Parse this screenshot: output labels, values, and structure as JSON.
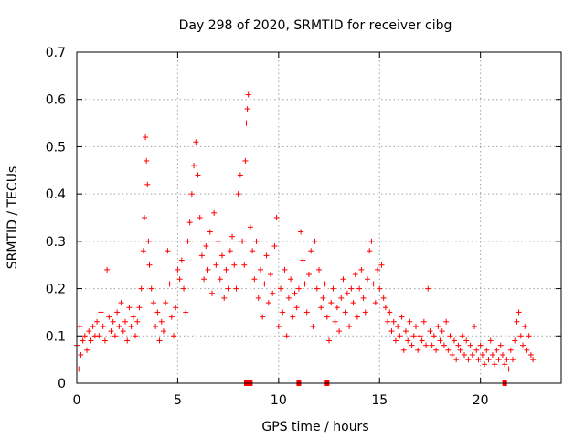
{
  "chart_data": {
    "type": "scatter",
    "title": "Day 298 of 2020, SRMTID for receiver cibg",
    "xlabel": "GPS time / hours",
    "ylabel": "SRMTID / TECUs",
    "xlim": [
      0,
      24
    ],
    "ylim": [
      0,
      0.7
    ],
    "x_ticks": [
      0,
      5,
      10,
      15,
      20
    ],
    "y_ticks": [
      0,
      0.1,
      0.2,
      0.3,
      0.4,
      0.5,
      0.6,
      0.7
    ],
    "x_tick_labels": [
      "0",
      "5",
      "10",
      "15",
      "20"
    ],
    "y_tick_labels": [
      "0",
      "0.1",
      "0.2",
      "0.3",
      "0.4",
      "0.5",
      "0.6",
      "0.7"
    ],
    "grid": true,
    "marker": "+",
    "color": "#ff0000",
    "data_gap_markers_x": [
      8.4,
      8.6,
      11.0,
      12.4,
      21.2
    ],
    "series": [
      {
        "name": "SRMTID",
        "points": [
          [
            0.0,
            0.08
          ],
          [
            0.1,
            0.03
          ],
          [
            0.15,
            0.12
          ],
          [
            0.2,
            0.06
          ],
          [
            0.3,
            0.09
          ],
          [
            0.4,
            0.1
          ],
          [
            0.5,
            0.07
          ],
          [
            0.6,
            0.11
          ],
          [
            0.7,
            0.09
          ],
          [
            0.8,
            0.12
          ],
          [
            0.9,
            0.1
          ],
          [
            1.0,
            0.13
          ],
          [
            1.1,
            0.1
          ],
          [
            1.2,
            0.15
          ],
          [
            1.3,
            0.12
          ],
          [
            1.4,
            0.09
          ],
          [
            1.5,
            0.24
          ],
          [
            1.6,
            0.14
          ],
          [
            1.7,
            0.11
          ],
          [
            1.8,
            0.13
          ],
          [
            1.9,
            0.1
          ],
          [
            2.0,
            0.15
          ],
          [
            2.1,
            0.12
          ],
          [
            2.2,
            0.17
          ],
          [
            2.3,
            0.11
          ],
          [
            2.4,
            0.13
          ],
          [
            2.5,
            0.09
          ],
          [
            2.6,
            0.16
          ],
          [
            2.7,
            0.12
          ],
          [
            2.8,
            0.14
          ],
          [
            2.9,
            0.1
          ],
          [
            3.0,
            0.13
          ],
          [
            3.1,
            0.16
          ],
          [
            3.2,
            0.2
          ],
          [
            3.3,
            0.28
          ],
          [
            3.35,
            0.35
          ],
          [
            3.4,
            0.52
          ],
          [
            3.45,
            0.47
          ],
          [
            3.5,
            0.42
          ],
          [
            3.55,
            0.3
          ],
          [
            3.6,
            0.25
          ],
          [
            3.7,
            0.2
          ],
          [
            3.8,
            0.17
          ],
          [
            3.9,
            0.12
          ],
          [
            4.0,
            0.15
          ],
          [
            4.1,
            0.09
          ],
          [
            4.2,
            0.13
          ],
          [
            4.3,
            0.11
          ],
          [
            4.4,
            0.17
          ],
          [
            4.5,
            0.28
          ],
          [
            4.6,
            0.21
          ],
          [
            4.7,
            0.14
          ],
          [
            4.8,
            0.1
          ],
          [
            4.9,
            0.16
          ],
          [
            5.0,
            0.24
          ],
          [
            5.1,
            0.22
          ],
          [
            5.2,
            0.26
          ],
          [
            5.3,
            0.2
          ],
          [
            5.4,
            0.15
          ],
          [
            5.5,
            0.3
          ],
          [
            5.6,
            0.34
          ],
          [
            5.7,
            0.4
          ],
          [
            5.8,
            0.46
          ],
          [
            5.9,
            0.51
          ],
          [
            6.0,
            0.44
          ],
          [
            6.1,
            0.35
          ],
          [
            6.2,
            0.27
          ],
          [
            6.3,
            0.22
          ],
          [
            6.4,
            0.29
          ],
          [
            6.5,
            0.24
          ],
          [
            6.6,
            0.32
          ],
          [
            6.7,
            0.19
          ],
          [
            6.8,
            0.36
          ],
          [
            6.9,
            0.25
          ],
          [
            7.0,
            0.3
          ],
          [
            7.1,
            0.22
          ],
          [
            7.2,
            0.27
          ],
          [
            7.3,
            0.18
          ],
          [
            7.4,
            0.24
          ],
          [
            7.5,
            0.2
          ],
          [
            7.6,
            0.28
          ],
          [
            7.7,
            0.31
          ],
          [
            7.8,
            0.25
          ],
          [
            7.9,
            0.2
          ],
          [
            8.0,
            0.4
          ],
          [
            8.1,
            0.44
          ],
          [
            8.2,
            0.3
          ],
          [
            8.3,
            0.25
          ],
          [
            8.35,
            0.47
          ],
          [
            8.4,
            0.55
          ],
          [
            8.45,
            0.58
          ],
          [
            8.5,
            0.61
          ],
          [
            8.6,
            0.33
          ],
          [
            8.7,
            0.28
          ],
          [
            8.8,
            0.22
          ],
          [
            8.9,
            0.3
          ],
          [
            9.0,
            0.18
          ],
          [
            9.1,
            0.24
          ],
          [
            9.2,
            0.14
          ],
          [
            9.3,
            0.21
          ],
          [
            9.4,
            0.27
          ],
          [
            9.5,
            0.17
          ],
          [
            9.6,
            0.23
          ],
          [
            9.7,
            0.19
          ],
          [
            9.8,
            0.29
          ],
          [
            9.9,
            0.35
          ],
          [
            10.0,
            0.12
          ],
          [
            10.1,
            0.2
          ],
          [
            10.2,
            0.15
          ],
          [
            10.3,
            0.24
          ],
          [
            10.4,
            0.1
          ],
          [
            10.5,
            0.18
          ],
          [
            10.6,
            0.22
          ],
          [
            10.7,
            0.14
          ],
          [
            10.8,
            0.19
          ],
          [
            10.9,
            0.16
          ],
          [
            11.0,
            0.2
          ],
          [
            11.1,
            0.32
          ],
          [
            11.2,
            0.26
          ],
          [
            11.3,
            0.21
          ],
          [
            11.4,
            0.15
          ],
          [
            11.5,
            0.23
          ],
          [
            11.6,
            0.28
          ],
          [
            11.7,
            0.12
          ],
          [
            11.8,
            0.3
          ],
          [
            11.9,
            0.2
          ],
          [
            12.0,
            0.24
          ],
          [
            12.1,
            0.16
          ],
          [
            12.2,
            0.18
          ],
          [
            12.3,
            0.21
          ],
          [
            12.4,
            0.14
          ],
          [
            12.5,
            0.09
          ],
          [
            12.6,
            0.17
          ],
          [
            12.7,
            0.2
          ],
          [
            12.8,
            0.13
          ],
          [
            12.9,
            0.16
          ],
          [
            13.0,
            0.11
          ],
          [
            13.1,
            0.18
          ],
          [
            13.2,
            0.22
          ],
          [
            13.3,
            0.15
          ],
          [
            13.4,
            0.19
          ],
          [
            13.5,
            0.12
          ],
          [
            13.6,
            0.2
          ],
          [
            13.7,
            0.17
          ],
          [
            13.8,
            0.23
          ],
          [
            13.9,
            0.14
          ],
          [
            14.0,
            0.2
          ],
          [
            14.1,
            0.24
          ],
          [
            14.2,
            0.18
          ],
          [
            14.3,
            0.15
          ],
          [
            14.4,
            0.22
          ],
          [
            14.5,
            0.28
          ],
          [
            14.6,
            0.3
          ],
          [
            14.7,
            0.21
          ],
          [
            14.8,
            0.17
          ],
          [
            14.9,
            0.24
          ],
          [
            15.0,
            0.2
          ],
          [
            15.1,
            0.25
          ],
          [
            15.2,
            0.18
          ],
          [
            15.3,
            0.16
          ],
          [
            15.4,
            0.13
          ],
          [
            15.5,
            0.15
          ],
          [
            15.6,
            0.11
          ],
          [
            15.7,
            0.13
          ],
          [
            15.8,
            0.09
          ],
          [
            15.9,
            0.12
          ],
          [
            16.0,
            0.1
          ],
          [
            16.1,
            0.14
          ],
          [
            16.2,
            0.07
          ],
          [
            16.3,
            0.11
          ],
          [
            16.4,
            0.09
          ],
          [
            16.5,
            0.13
          ],
          [
            16.6,
            0.08
          ],
          [
            16.7,
            0.1
          ],
          [
            16.8,
            0.12
          ],
          [
            16.9,
            0.07
          ],
          [
            17.0,
            0.1
          ],
          [
            17.1,
            0.09
          ],
          [
            17.2,
            0.13
          ],
          [
            17.3,
            0.08
          ],
          [
            17.4,
            0.2
          ],
          [
            17.5,
            0.11
          ],
          [
            17.6,
            0.08
          ],
          [
            17.7,
            0.1
          ],
          [
            17.8,
            0.07
          ],
          [
            17.9,
            0.12
          ],
          [
            18.0,
            0.09
          ],
          [
            18.1,
            0.11
          ],
          [
            18.2,
            0.08
          ],
          [
            18.3,
            0.13
          ],
          [
            18.4,
            0.07
          ],
          [
            18.5,
            0.1
          ],
          [
            18.6,
            0.06
          ],
          [
            18.7,
            0.09
          ],
          [
            18.8,
            0.05
          ],
          [
            18.9,
            0.08
          ],
          [
            19.0,
            0.07
          ],
          [
            19.1,
            0.1
          ],
          [
            19.2,
            0.06
          ],
          [
            19.3,
            0.09
          ],
          [
            19.4,
            0.05
          ],
          [
            19.5,
            0.08
          ],
          [
            19.6,
            0.06
          ],
          [
            19.7,
            0.12
          ],
          [
            19.8,
            0.07
          ],
          [
            19.9,
            0.05
          ],
          [
            20.0,
            0.08
          ],
          [
            20.1,
            0.06
          ],
          [
            20.2,
            0.04
          ],
          [
            20.3,
            0.07
          ],
          [
            20.4,
            0.05
          ],
          [
            20.5,
            0.09
          ],
          [
            20.6,
            0.06
          ],
          [
            20.7,
            0.04
          ],
          [
            20.8,
            0.07
          ],
          [
            20.9,
            0.05
          ],
          [
            21.0,
            0.08
          ],
          [
            21.1,
            0.06
          ],
          [
            21.2,
            0.04
          ],
          [
            21.3,
            0.05
          ],
          [
            21.4,
            0.03
          ],
          [
            21.5,
            0.07
          ],
          [
            21.6,
            0.05
          ],
          [
            21.7,
            0.09
          ],
          [
            21.8,
            0.13
          ],
          [
            21.9,
            0.15
          ],
          [
            22.0,
            0.1
          ],
          [
            22.1,
            0.08
          ],
          [
            22.2,
            0.12
          ],
          [
            22.3,
            0.07
          ],
          [
            22.4,
            0.1
          ],
          [
            22.5,
            0.06
          ],
          [
            22.6,
            0.05
          ]
        ]
      }
    ]
  }
}
